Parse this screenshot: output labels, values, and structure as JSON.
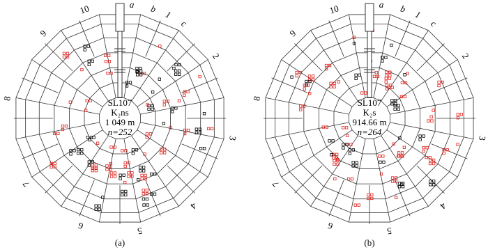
{
  "panels": [
    {
      "label": "(a)",
      "center_lines": [
        "SL107",
        "K₂ns",
        "1 049 m",
        "n=252"
      ],
      "directions": [
        "10",
        "a",
        "b",
        "1",
        "c",
        "2",
        "3",
        "4",
        "5",
        "6",
        "7",
        "8",
        "9"
      ]
    },
    {
      "label": "(b)",
      "center_lines": [
        "SL107",
        "K₂s",
        "914.66 m",
        "n=264"
      ],
      "directions": [
        "10",
        "a",
        "b",
        "1",
        "c",
        "2",
        "3",
        "4",
        "5",
        "6",
        "7",
        "8",
        "9"
      ]
    }
  ]
}
